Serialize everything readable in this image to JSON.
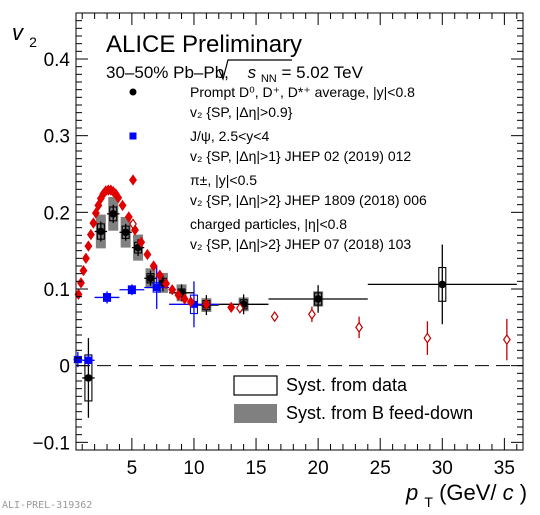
{
  "chart_data": {
    "type": "scatter",
    "title": "ALICE Preliminary",
    "subtitle_prefix": "30–50% Pb–Pb, ",
    "subtitle_snn": "s",
    "subtitle_snn_sub": "NN",
    "subtitle_suffix": " = 5.02 TeV",
    "xlabel_var": "p",
    "xlabel_sub": "T",
    "xlabel_unit": " (GeV/",
    "xlabel_unit_c": "c",
    "xlabel_close": ")",
    "ylabel_var": "v",
    "ylabel_sub": "2",
    "xlim": [
      0.5,
      36.5
    ],
    "ylim": [
      -0.11,
      0.46
    ],
    "x_ticks": [
      "5",
      "10",
      "15",
      "20",
      "25",
      "30",
      "35"
    ],
    "x_tick_values": [
      5,
      10,
      15,
      20,
      25,
      30,
      35
    ],
    "y_ticks": [
      "−0.1",
      "0",
      "0.1",
      "0.2",
      "0.3",
      "0.4"
    ],
    "y_tick_values": [
      -0.1,
      0,
      0.1,
      0.2,
      0.3,
      0.4
    ],
    "legend": [
      {
        "line1": "Prompt D⁰, D⁺, D*⁺ average, |y|<0.8",
        "line2": "v₂ {SP, |Δη|>0.9}",
        "marker": "circle",
        "color": "#000000"
      },
      {
        "line1": "J/ψ, 2.5<y<4",
        "line2": "v₂ {SP, |Δη|>1} JHEP 02 (2019) 012",
        "marker": "square",
        "color": "#0000ff"
      },
      {
        "line1": "π±, |y|<0.5",
        "line2": "v₂ {SP, |Δη|>2} JHEP 1809 (2018) 006",
        "marker": "diamond",
        "color": "#e00000"
      },
      {
        "line1": "charged particles, |η|<0.8",
        "line2": "v₂ {SP, |Δη|>2} JHEP 07 (2018) 103",
        "marker": "open-diamond",
        "color": "#c00000"
      }
    ],
    "syst_legend": {
      "data": "Syst. from data",
      "bfeed": "Syst. from B feed-down"
    },
    "series": [
      {
        "name": "Prompt D average",
        "color": "#000000",
        "marker": "circle",
        "points": [
          {
            "x": 1.5,
            "y": -0.016,
            "xerr": 0.5,
            "yerr": 0.052,
            "sx": 0.5,
            "sy": 0.03
          },
          {
            "x": 2.5,
            "y": 0.175,
            "xerr": 0.5,
            "yerr": 0.013,
            "sx": 0.5,
            "sy": 0.01,
            "fd": 0.022
          },
          {
            "x": 3.5,
            "y": 0.198,
            "xerr": 0.5,
            "yerr": 0.012,
            "sx": 0.5,
            "sy": 0.009,
            "fd": 0.022
          },
          {
            "x": 4.5,
            "y": 0.174,
            "xerr": 0.5,
            "yerr": 0.011,
            "sx": 0.5,
            "sy": 0.008,
            "fd": 0.02
          },
          {
            "x": 5.5,
            "y": 0.154,
            "xerr": 0.5,
            "yerr": 0.011,
            "sx": 0.5,
            "sy": 0.007,
            "fd": 0.017
          },
          {
            "x": 6.5,
            "y": 0.114,
            "xerr": 0.5,
            "yerr": 0.01,
            "sx": 0.5,
            "sy": 0.006,
            "fd": 0.013
          },
          {
            "x": 7.5,
            "y": 0.108,
            "xerr": 0.5,
            "yerr": 0.011,
            "sx": 0.5,
            "sy": 0.006,
            "fd": 0.013
          },
          {
            "x": 9,
            "y": 0.095,
            "xerr": 1,
            "yerr": 0.011,
            "sx": 0.5,
            "sy": 0.005,
            "fd": 0.011
          },
          {
            "x": 11,
            "y": 0.079,
            "xerr": 1,
            "yerr": 0.013,
            "sx": 0.5,
            "sy": 0.006,
            "fd": 0.009
          },
          {
            "x": 14,
            "y": 0.08,
            "xerr": 2,
            "yerr": 0.013,
            "sx": 0.5,
            "sy": 0.006,
            "fd": 0.009
          },
          {
            "x": 20,
            "y": 0.087,
            "xerr": 4,
            "yerr": 0.018,
            "sx": 0.5,
            "sy": 0.008,
            "fd": 0.01
          },
          {
            "x": 30,
            "y": 0.106,
            "xerr": 6,
            "yerr": 0.052,
            "sx": 0.5,
            "sy": 0.022,
            "fd": 0.0
          }
        ]
      },
      {
        "name": "J/psi",
        "color": "#0000ff",
        "marker": "square",
        "points": [
          {
            "x": 0.65,
            "y": 0.008,
            "xerr": 0.35,
            "yerr": 0.01,
            "sx": 0.2,
            "sy": 0.004
          },
          {
            "x": 1.5,
            "y": 0.007,
            "xerr": 0.5,
            "yerr": 0.008,
            "sx": 0.2,
            "sy": 0.004
          },
          {
            "x": 3,
            "y": 0.089,
            "xerr": 1,
            "yerr": 0.008,
            "sx": 0.3,
            "sy": 0.005
          },
          {
            "x": 5,
            "y": 0.099,
            "xerr": 1,
            "yerr": 0.007,
            "sx": 0.5,
            "sy": 0.005
          },
          {
            "x": 7,
            "y": 0.102,
            "xerr": 1,
            "yerr": 0.028,
            "sx": 0.5,
            "sy": 0.006
          },
          {
            "x": 10,
            "y": 0.08,
            "xerr": 2,
            "yerr": 0.03,
            "sx": 0.5,
            "sy": 0.012
          }
        ]
      },
      {
        "name": "pi",
        "color": "#e00000",
        "marker": "diamond",
        "points": [
          {
            "x": 0.7,
            "y": 0.093
          },
          {
            "x": 0.9,
            "y": 0.108
          },
          {
            "x": 1.1,
            "y": 0.124
          },
          {
            "x": 1.3,
            "y": 0.14
          },
          {
            "x": 1.5,
            "y": 0.156
          },
          {
            "x": 1.7,
            "y": 0.171
          },
          {
            "x": 1.9,
            "y": 0.186
          },
          {
            "x": 2.1,
            "y": 0.199
          },
          {
            "x": 2.3,
            "y": 0.209
          },
          {
            "x": 2.5,
            "y": 0.218
          },
          {
            "x": 2.7,
            "y": 0.224
          },
          {
            "x": 2.9,
            "y": 0.228
          },
          {
            "x": 3.1,
            "y": 0.229
          },
          {
            "x": 3.3,
            "y": 0.229
          },
          {
            "x": 3.5,
            "y": 0.227
          },
          {
            "x": 3.7,
            "y": 0.224
          },
          {
            "x": 3.9,
            "y": 0.219
          },
          {
            "x": 4.25,
            "y": 0.209
          },
          {
            "x": 4.75,
            "y": 0.194
          },
          {
            "x": 5.25,
            "y": 0.177
          },
          {
            "x": 5.75,
            "y": 0.161
          },
          {
            "x": 6.25,
            "y": 0.145
          },
          {
            "x": 6.75,
            "y": 0.13
          },
          {
            "x": 7.25,
            "y": 0.118
          },
          {
            "x": 7.75,
            "y": 0.107
          },
          {
            "x": 8.25,
            "y": 0.099
          },
          {
            "x": 8.75,
            "y": 0.092
          },
          {
            "x": 9.25,
            "y": 0.087
          },
          {
            "x": 9.75,
            "y": 0.083
          },
          {
            "x": 11,
            "y": 0.08
          },
          {
            "x": 13,
            "y": 0.076
          }
        ]
      },
      {
        "name": "charged particles",
        "color": "#c00000",
        "marker": "open-diamond",
        "points": [
          {
            "x": 13.7,
            "y": 0.075,
            "yerr": 0.006
          },
          {
            "x": 16.5,
            "y": 0.064,
            "yerr": 0.006
          },
          {
            "x": 19.5,
            "y": 0.067,
            "yerr": 0.01
          },
          {
            "x": 23.3,
            "y": 0.05,
            "yerr": 0.014
          },
          {
            "x": 28.8,
            "y": 0.036,
            "yerr": 0.022
          },
          {
            "x": 35.2,
            "y": 0.034,
            "yerr": 0.027
          }
        ]
      }
    ]
  },
  "footer": "ALI-PREL-319362"
}
